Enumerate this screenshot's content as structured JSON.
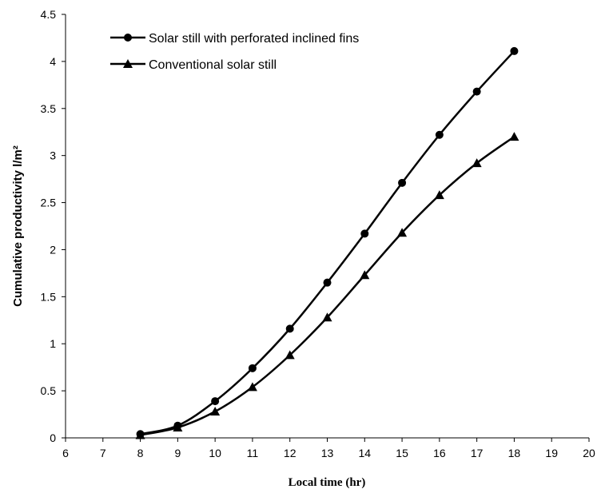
{
  "chart_data": {
    "type": "line",
    "title": "",
    "xlabel": "Local time (hr)",
    "ylabel": "Cumulative productivity l/m²",
    "xlim": [
      6,
      20
    ],
    "ylim": [
      0,
      4.5
    ],
    "x_ticks": [
      6,
      7,
      8,
      9,
      10,
      11,
      12,
      13,
      14,
      15,
      16,
      17,
      18,
      19,
      20
    ],
    "y_ticks": [
      0,
      0.5,
      1,
      1.5,
      2,
      2.5,
      3,
      3.5,
      4,
      4.5
    ],
    "grid": false,
    "legend_position": "top-left",
    "series": [
      {
        "name": "Solar still with perforated inclined fins",
        "marker": "circle",
        "color": "#000000",
        "x": [
          8,
          9,
          10,
          11,
          12,
          13,
          14,
          15,
          16,
          17,
          18
        ],
        "y": [
          0.04,
          0.13,
          0.39,
          0.74,
          1.16,
          1.65,
          2.17,
          2.71,
          3.22,
          3.68,
          4.11
        ]
      },
      {
        "name": "Conventional solar still",
        "marker": "triangle",
        "color": "#000000",
        "x": [
          8,
          9,
          10,
          11,
          12,
          13,
          14,
          15,
          16,
          17,
          18
        ],
        "y": [
          0.03,
          0.11,
          0.28,
          0.54,
          0.88,
          1.28,
          1.73,
          2.18,
          2.58,
          2.92,
          3.2
        ]
      }
    ]
  }
}
